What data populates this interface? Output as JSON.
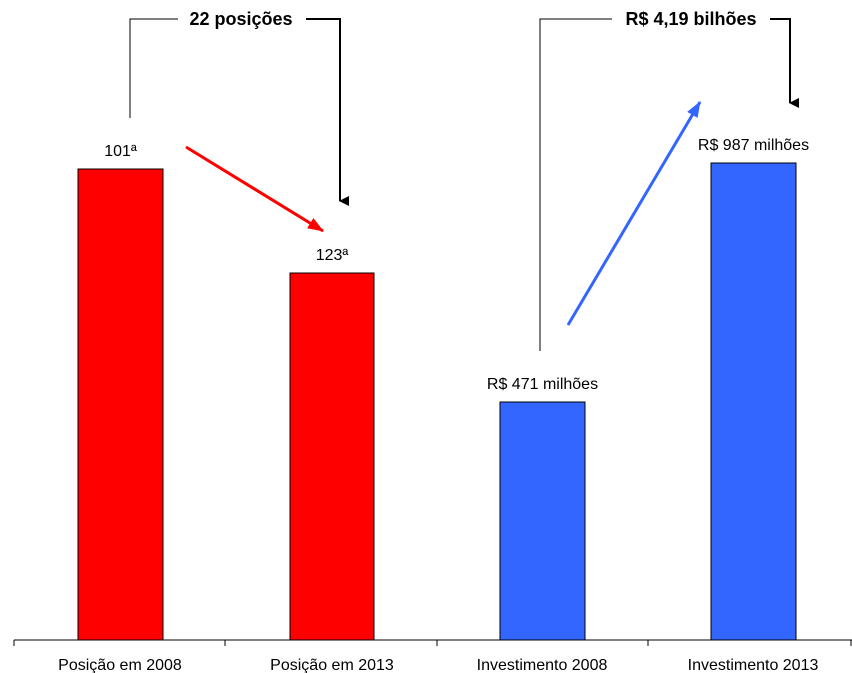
{
  "chart_data": {
    "type": "bar",
    "categories": [
      "Posição em 2008",
      "Posição em 2013",
      "Investimento 2008",
      "Investimento 2013"
    ],
    "bars": [
      {
        "category": "Posição em 2008",
        "label": "101ª",
        "color": "#ff0000"
      },
      {
        "category": "Posição em 2013",
        "label": "123ª",
        "color": "#ff0000"
      },
      {
        "category": "Investimento 2008",
        "label": "R$ 471 milhões",
        "color": "#3366ff"
      },
      {
        "category": "Investimento 2013",
        "label": "R$ 987 milhões",
        "color": "#3366ff"
      }
    ],
    "annotations": {
      "positions_change": "22 posições",
      "investment_total": "R$ 4,19 bilhões"
    },
    "trend_arrows": [
      {
        "series": "positions",
        "direction": "down",
        "color": "#ff0000"
      },
      {
        "series": "investment",
        "direction": "up",
        "color": "#3366ff"
      }
    ],
    "grid": false,
    "legend": "none",
    "colors": {
      "position_bars": "#ff0000",
      "investment_bars": "#3366ff",
      "axis": "#000000"
    }
  }
}
